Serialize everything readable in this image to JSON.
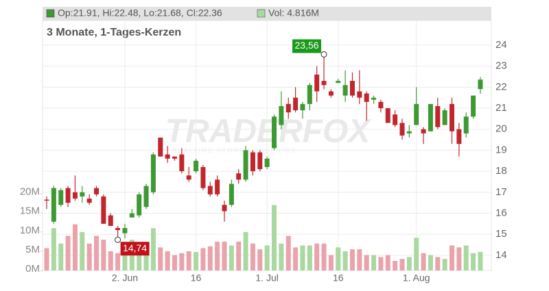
{
  "chart_data": {
    "type": "candlestick",
    "legend_price": "Op:21.91, Hi:22.48, Lo:21.68, Cl:22.36",
    "legend_volume": "Vol: 4.816M",
    "subtitle": "3 Monate, 1-Tages-Kerzen",
    "watermark": "TRADERFOX",
    "watermark_sub": "REALTIME STOCK SCREENING",
    "max_label": "23,56",
    "min_label": "14,74",
    "categories": [
      null,
      null,
      null,
      null,
      null,
      null,
      null,
      null,
      null,
      null,
      null,
      "2. Jun",
      null,
      null,
      null,
      null,
      null,
      null,
      null,
      null,
      null,
      "16",
      null,
      null,
      null,
      null,
      null,
      null,
      null,
      null,
      null,
      "1. Jul",
      null,
      null,
      null,
      null,
      null,
      null,
      null,
      null,
      null,
      "16",
      null,
      null,
      null,
      null,
      null,
      null,
      null,
      null,
      null,
      null,
      "1. Aug",
      null,
      null,
      null,
      null,
      null,
      null,
      null,
      null,
      null
    ],
    "open": [
      16.65,
      15.6,
      16.4,
      17.2,
      17.0,
      16.8,
      16.7,
      17.2,
      16.8,
      15.9,
      15.3,
      15.05,
      15.8,
      15.9,
      16.3,
      17.0,
      19.6,
      18.8,
      18.7,
      18.8,
      17.8,
      18.0,
      18.2,
      17.3,
      17.6,
      16.4,
      16.4,
      17.9,
      17.6,
      18.9,
      18.9,
      18.2,
      19.1,
      20.2,
      21.2,
      21.5,
      20.9,
      21.2,
      22.6,
      22.3,
      21.8,
      22.2,
      21.6,
      22.3,
      21.8,
      21.7,
      21.4,
      21.3,
      21.0,
      20.7,
      20.3,
      19.8,
      20.2,
      20.0,
      19.9,
      21.1,
      20.2,
      21.2,
      20.0,
      19.8,
      20.6,
      21.91
    ],
    "high": [
      16.8,
      17.3,
      17.2,
      17.3,
      17.8,
      17.3,
      16.9,
      17.3,
      16.9,
      16.0,
      15.4,
      15.5,
      16.2,
      17.0,
      17.4,
      18.9,
      19.6,
      19.2,
      18.7,
      19.1,
      18.2,
      18.6,
      18.3,
      17.5,
      17.8,
      16.6,
      17.6,
      18.1,
      19.2,
      19.0,
      19.0,
      18.7,
      20.7,
      21.8,
      21.5,
      22.0,
      21.3,
      22.2,
      23.0,
      23.56,
      21.9,
      22.4,
      22.8,
      22.7,
      22.8,
      21.8,
      21.6,
      21.4,
      21.0,
      20.9,
      20.5,
      20.2,
      22.0,
      20.1,
      21.2,
      21.5,
      21.0,
      21.5,
      20.3,
      20.8,
      21.6,
      22.48
    ],
    "low": [
      16.2,
      15.5,
      16.3,
      16.3,
      16.6,
      16.5,
      16.4,
      16.8,
      15.5,
      15.4,
      14.74,
      14.8,
      15.8,
      15.8,
      16.2,
      16.9,
      18.7,
      18.4,
      18.5,
      17.9,
      17.5,
      17.9,
      17.1,
      16.8,
      16.8,
      15.6,
      16.3,
      17.4,
      17.5,
      17.8,
      18.0,
      18.1,
      19.0,
      20.0,
      20.5,
      20.8,
      20.5,
      20.9,
      21.3,
      21.9,
      21.5,
      22.2,
      21.3,
      21.5,
      21.2,
      20.4,
      21.2,
      20.8,
      20.3,
      20.1,
      19.5,
      19.6,
      20.2,
      19.3,
      19.9,
      20.0,
      20.2,
      19.3,
      18.7,
      19.6,
      20.5,
      21.68
    ],
    "close": [
      16.6,
      17.2,
      17.1,
      16.5,
      16.7,
      17.0,
      16.5,
      16.9,
      15.5,
      15.4,
      15.2,
      15.3,
      16.0,
      16.9,
      17.3,
      18.8,
      18.7,
      18.6,
      18.6,
      18.0,
      17.6,
      18.5,
      17.2,
      16.9,
      16.9,
      16.1,
      17.4,
      17.6,
      19.0,
      18.0,
      18.1,
      18.6,
      20.6,
      21.1,
      20.8,
      20.9,
      21.2,
      22.1,
      21.8,
      22.1,
      21.6,
      22.3,
      22.1,
      21.6,
      21.5,
      21.3,
      21.5,
      21.0,
      20.3,
      20.2,
      19.7,
      19.9,
      21.2,
      19.8,
      21.2,
      20.1,
      20.9,
      19.9,
      19.3,
      20.6,
      21.6,
      22.36
    ],
    "volume": [
      5.8,
      11,
      7,
      9,
      12,
      10,
      7,
      9,
      8,
      5,
      4.5,
      6,
      8,
      6,
      7,
      11,
      6,
      5,
      4,
      4.5,
      5,
      4.8,
      5.8,
      6.3,
      7.5,
      7.5,
      6.5,
      7.5,
      10,
      7,
      5.5,
      6.5,
      17,
      7,
      9,
      6,
      6.5,
      6.5,
      7,
      7,
      4,
      6,
      5,
      5.5,
      5.5,
      4,
      4,
      3.5,
      4,
      2.5,
      3,
      3.5,
      8.5,
      4.5,
      4,
      3.5,
      3,
      6.5,
      6,
      6.5,
      4.5,
      4.816
    ],
    "up_color": "#3d9a33",
    "down_color": "#c1262d",
    "volume_up_color": "#a9d9a0",
    "volume_down_color": "#eaa2ab",
    "ylim": [
      13.28,
      25.17
    ],
    "yticks": [
      14,
      15,
      16,
      17,
      18,
      19,
      20,
      21,
      22,
      23,
      24
    ],
    "y2lim": [
      0,
      65
    ],
    "y2ticks": [
      {
        "value": 0,
        "label": "0M"
      },
      {
        "value": 5,
        "label": "5M"
      },
      {
        "value": 10,
        "label": "10M"
      },
      {
        "value": 15,
        "label": "15M"
      },
      {
        "value": 20,
        "label": "20M"
      }
    ],
    "grid": true
  }
}
